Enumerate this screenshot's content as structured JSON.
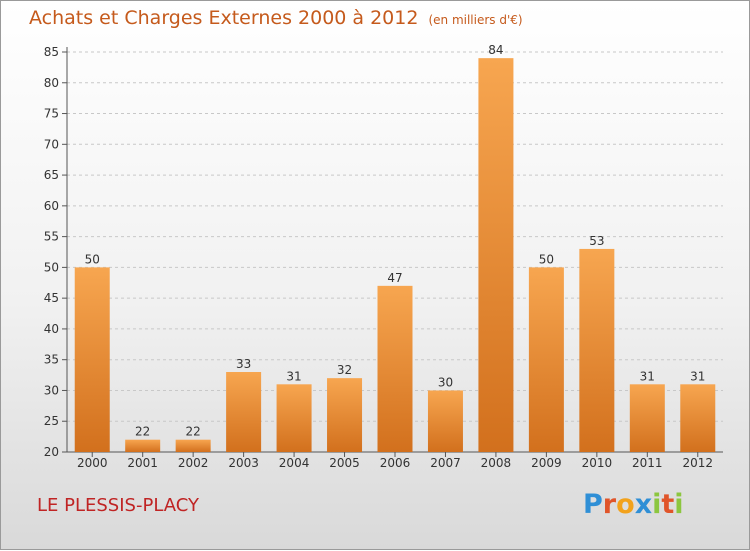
{
  "title": "Achats et Charges Externes 2000 à 2012",
  "subtitle": "(en milliers d'€)",
  "commune": "LE PLESSIS-PLACY",
  "logo": {
    "letters": [
      "P",
      "r",
      "o",
      "x",
      "i",
      "t",
      "i"
    ],
    "colors": [
      "#2f8fd6",
      "#e0552a",
      "#f2a21c",
      "#2f8fd6",
      "#8cc63f",
      "#e0552a",
      "#8cc63f"
    ]
  },
  "colors": {
    "bar_top": "#f7a650",
    "bar_bottom": "#d2701d",
    "title": "#c55a1c",
    "commune": "#c02424"
  },
  "chart_data": {
    "type": "bar",
    "categories": [
      "2000",
      "2001",
      "2002",
      "2003",
      "2004",
      "2005",
      "2006",
      "2007",
      "2008",
      "2009",
      "2010",
      "2011",
      "2012"
    ],
    "values": [
      50,
      22,
      22,
      33,
      31,
      32,
      47,
      30,
      84,
      50,
      53,
      31,
      31
    ],
    "ylim": [
      20,
      85
    ],
    "yticks": [
      20,
      25,
      30,
      35,
      40,
      45,
      50,
      55,
      60,
      65,
      70,
      75,
      80,
      85
    ],
    "grid": "horizontal dashed",
    "data_labels": true
  }
}
